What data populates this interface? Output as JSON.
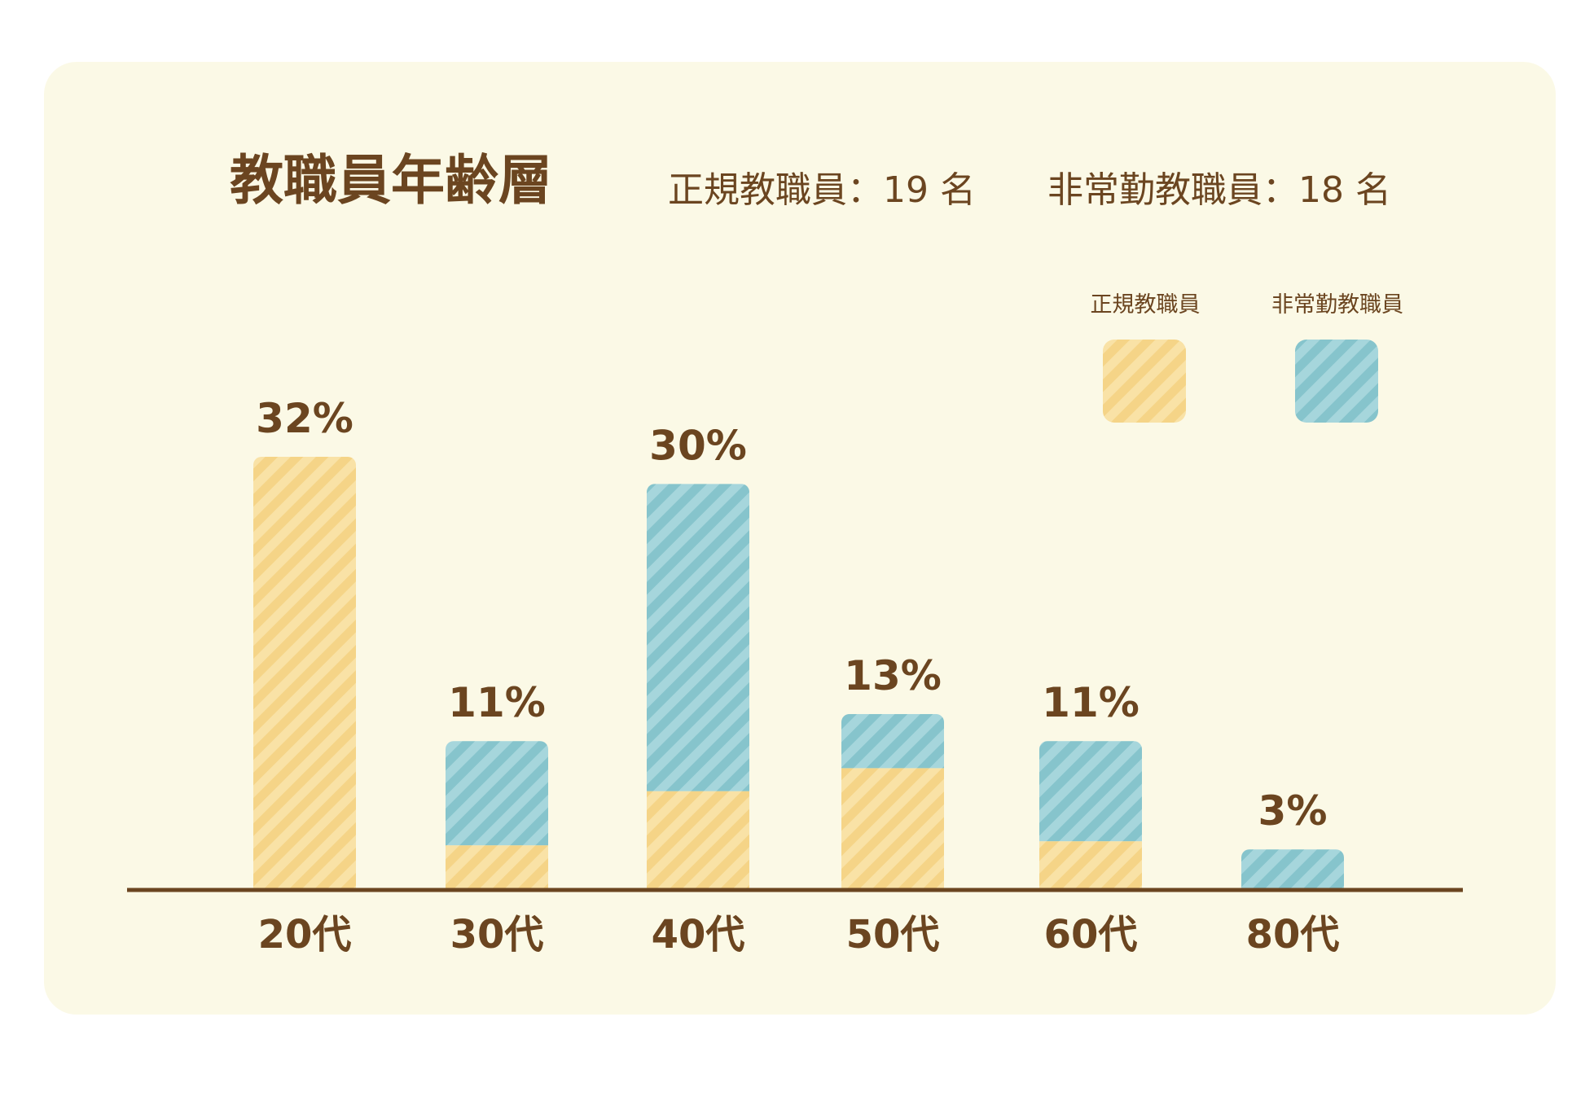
{
  "title": "教職員年齢層",
  "summary": {
    "regular": "正規教職員：19 名",
    "part_time": "非常勤教職員：18 名"
  },
  "colors": {
    "background": "#fbf9e6",
    "regular": "#f5d487",
    "regular_stripe": "#f9e2a6",
    "part_time": "#86c4cc",
    "part_time_stripe": "#a6d6dc",
    "text": "#6b4520",
    "axis": "#6b4520"
  },
  "legend": [
    {
      "label": "正規教職員",
      "series": "regular"
    },
    {
      "label": "非常勤教職員",
      "series": "part_time"
    }
  ],
  "chart_data": {
    "type": "bar",
    "stacked": true,
    "categories": [
      "20代",
      "30代",
      "40代",
      "50代",
      "60代",
      "80代"
    ],
    "series": [
      {
        "name": "正規教職員",
        "key": "regular",
        "values": [
          32,
          3.3,
          7.3,
          9,
          3.6,
          0
        ]
      },
      {
        "name": "非常勤教職員",
        "key": "part_time",
        "values": [
          0,
          7.7,
          22.7,
          4,
          7.4,
          3
        ]
      }
    ],
    "totals": [
      32,
      11,
      30,
      13,
      11,
      3
    ],
    "total_labels": [
      "32%",
      "11%",
      "30%",
      "13%",
      "11%",
      "3%"
    ],
    "ylim": [
      0,
      32
    ],
    "grid": false,
    "legend_position": "top-right"
  }
}
